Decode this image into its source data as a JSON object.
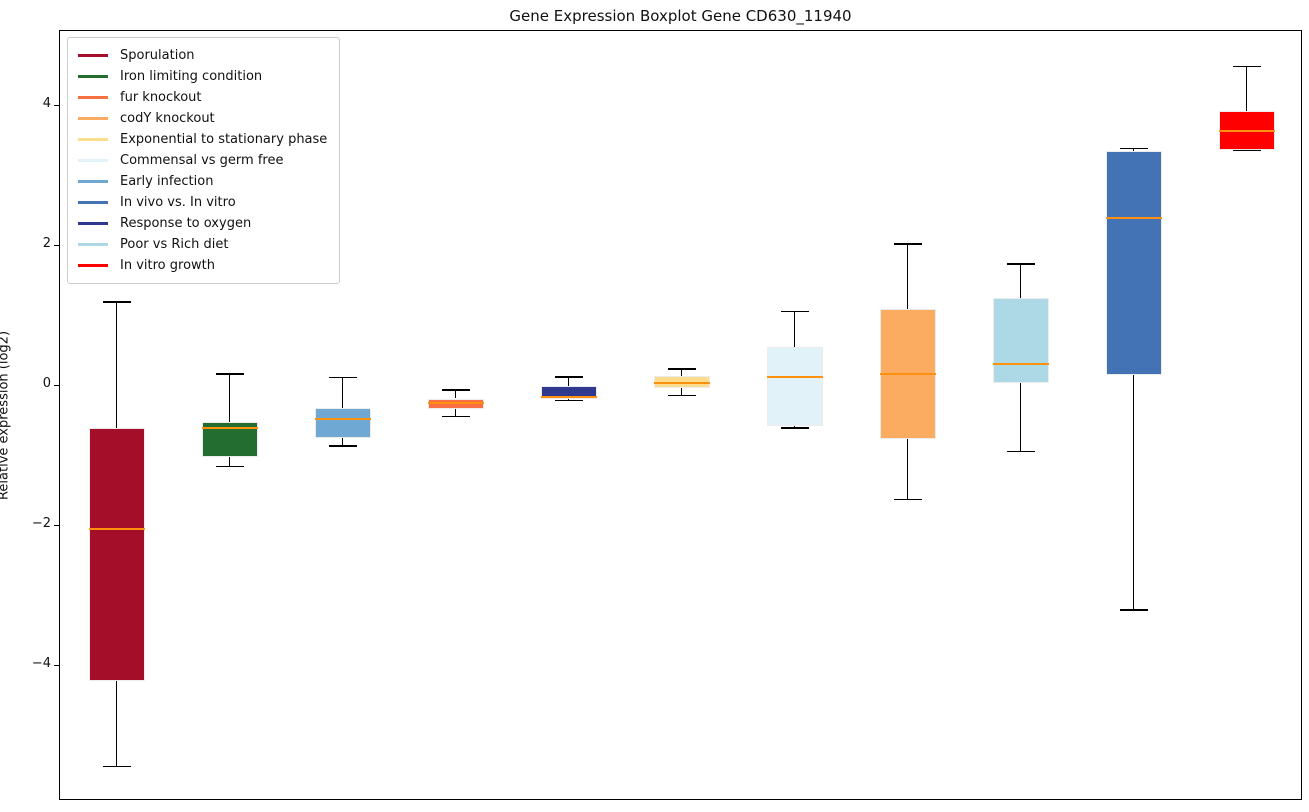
{
  "chart_data": {
    "type": "boxplot",
    "title": "Gene Expression Boxplot Gene CD630_11940",
    "ylabel": "Relative expression (log2)",
    "xlabel": "",
    "ylim": [
      -5.93,
      5.07
    ],
    "grid": false,
    "legend_position": "upper left",
    "median_color": "#FF910E",
    "yticks": [
      {
        "v": 4,
        "label": "4"
      },
      {
        "v": 2,
        "label": "2"
      },
      {
        "v": 0,
        "label": "0"
      },
      {
        "v": -2,
        "label": "−2"
      },
      {
        "v": -4,
        "label": "−4"
      }
    ],
    "series": [
      {
        "name": "Sporulation",
        "color": "#A50E28",
        "whisker_low": -5.44,
        "q1": -4.22,
        "median": -2.05,
        "q3": -0.6,
        "whisker_high": 1.2
      },
      {
        "name": "Iron limiting condition",
        "color": "#246D31",
        "whisker_low": -1.15,
        "q1": -1.01,
        "median": -0.6,
        "q3": -0.51,
        "whisker_high": 0.17
      },
      {
        "name": "Early infection",
        "color": "#6FA8D3",
        "whisker_low": -0.86,
        "q1": -0.75,
        "median": -0.47,
        "q3": -0.32,
        "whisker_high": 0.12
      },
      {
        "name": "fur knockout",
        "color": "#F86F43",
        "whisker_low": -0.44,
        "q1": -0.33,
        "median": -0.24,
        "q3": -0.18,
        "whisker_high": -0.06
      },
      {
        "name": "Response to oxygen",
        "color": "#2F3A8F",
        "whisker_low": -0.21,
        "q1": -0.19,
        "median": -0.16,
        "q3": 0.0,
        "whisker_high": 0.13
      },
      {
        "name": "Exponential to stationary phase",
        "color": "#FCDC8F",
        "whisker_low": -0.14,
        "q1": -0.03,
        "median": 0.04,
        "q3": 0.14,
        "whisker_high": 0.24
      },
      {
        "name": "Commensal vs germ free",
        "color": "#E1F2F8",
        "whisker_low": -0.6,
        "q1": -0.57,
        "median": 0.13,
        "q3": 0.56,
        "whisker_high": 1.06
      },
      {
        "name": "codY knockout",
        "color": "#FBAC60",
        "whisker_low": -1.62,
        "q1": -0.76,
        "median": 0.17,
        "q3": 1.1,
        "whisker_high": 2.03
      },
      {
        "name": "Poor vs Rich diet",
        "color": "#ADD8E6",
        "whisker_low": -0.94,
        "q1": 0.04,
        "median": 0.31,
        "q3": 1.25,
        "whisker_high": 1.74
      },
      {
        "name": "In vivo vs. In vitro",
        "color": "#4473B5",
        "whisker_low": -3.2,
        "q1": 0.15,
        "median": 2.4,
        "q3": 3.35,
        "whisker_high": 3.39
      },
      {
        "name": "In vitro growth",
        "color": "#FF0000",
        "whisker_low": 3.36,
        "q1": 3.37,
        "median": 3.64,
        "q3": 3.93,
        "whisker_high": 4.56
      }
    ],
    "legend": [
      {
        "label": "Sporulation",
        "color": "#A50E28"
      },
      {
        "label": "Iron limiting condition",
        "color": "#246D31"
      },
      {
        "label": "fur knockout",
        "color": "#F86F43"
      },
      {
        "label": "codY knockout",
        "color": "#FBAC60"
      },
      {
        "label": "Exponential to stationary phase",
        "color": "#FCDC8F"
      },
      {
        "label": "Commensal vs germ free",
        "color": "#E1F2F8"
      },
      {
        "label": "Early infection",
        "color": "#6FA8D3"
      },
      {
        "label": "In vivo vs. In vitro",
        "color": "#4473B5"
      },
      {
        "label": "Response to oxygen",
        "color": "#2F3A8F"
      },
      {
        "label": "Poor vs Rich diet",
        "color": "#ADD8E6"
      },
      {
        "label": "In vitro growth",
        "color": "#FF0000"
      }
    ]
  }
}
